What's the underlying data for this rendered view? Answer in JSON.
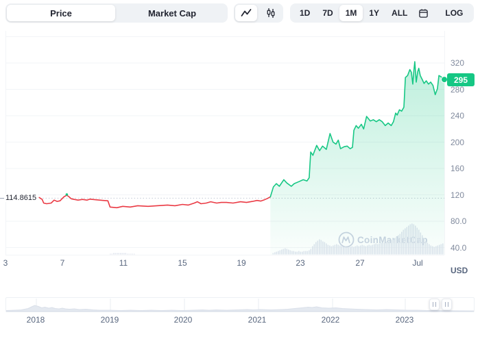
{
  "toolbar": {
    "view_tabs": [
      {
        "id": "price",
        "label": "Price",
        "selected": true
      },
      {
        "id": "market-cap",
        "label": "Market Cap",
        "selected": false
      }
    ],
    "chart_types": [
      {
        "icon": "line-chart-icon",
        "selected": true
      },
      {
        "icon": "candlestick-icon",
        "selected": false
      }
    ],
    "ranges": [
      {
        "label": "1D",
        "selected": false
      },
      {
        "label": "7D",
        "selected": false
      },
      {
        "label": "1M",
        "selected": true
      },
      {
        "label": "1Y",
        "selected": false
      },
      {
        "label": "ALL",
        "selected": false
      }
    ],
    "calendar_icon": "calendar-icon",
    "log_label": "LOG",
    "download_icon": "download-icon"
  },
  "chart": {
    "unit": "USD",
    "current_price": "295",
    "reference_price": "114.8615",
    "watermark": "CoinMarketCap",
    "y_ticks": [
      {
        "label": "320",
        "price": 320
      },
      {
        "label": "280",
        "price": 280
      },
      {
        "label": "240",
        "price": 240
      },
      {
        "label": "200",
        "price": 200
      },
      {
        "label": "160",
        "price": 160
      },
      {
        "label": "120",
        "price": 120
      },
      {
        "label": "80.0",
        "price": 80
      },
      {
        "label": "40.0",
        "price": 40
      }
    ],
    "x_ticks": [
      {
        "label": "3"
      },
      {
        "label": "7"
      },
      {
        "label": "11"
      },
      {
        "label": "15"
      },
      {
        "label": "19"
      },
      {
        "label": "23"
      },
      {
        "label": "27"
      },
      {
        "label": "Jul"
      }
    ]
  },
  "minimap": {
    "years": [
      "2018",
      "2019",
      "2020",
      "2021",
      "2022",
      "2023"
    ]
  },
  "colors": {
    "up": "#16c784",
    "down": "#ea3943",
    "toolbar_bg": "#eff2f5",
    "tick": "#808a9d",
    "axis": "#58667e",
    "volume": "#dfe4ee",
    "watermark": "#ccd3e2",
    "grid": "#f2f4f7",
    "ref_line": "#c1c8d4",
    "minimap_fill": "#e4e9f0",
    "minimap_stroke": "#d9dfe9"
  },
  "chart_data": {
    "type": "line",
    "title": "Price chart, 1M view, June 3 - early July",
    "unit": "USD",
    "x_axis": "day of month (June, ending at Jul)",
    "x_tick_values": [
      3,
      7,
      11,
      15,
      19,
      23,
      27,
      31
    ],
    "y_tick_values": [
      40,
      80,
      120,
      160,
      200,
      240,
      280,
      320
    ],
    "ylim": [
      20,
      360
    ],
    "grid": true,
    "reference_price": 114.8615,
    "current_price": 295,
    "series": [
      {
        "name": "price-down-segment",
        "color": "#ea3943",
        "points": [
          [
            5.4,
            116
          ],
          [
            5.6,
            113
          ],
          [
            5.7,
            107.5
          ],
          [
            5.9,
            106.5
          ],
          [
            6.2,
            107.5
          ],
          [
            6.4,
            112
          ],
          [
            6.6,
            110
          ],
          [
            6.8,
            111
          ],
          [
            7.05,
            117
          ],
          [
            7.25,
            119.5
          ],
          [
            7.4,
            117
          ],
          [
            7.55,
            114
          ],
          [
            7.75,
            113
          ],
          [
            8.0,
            112
          ],
          [
            8.3,
            113
          ],
          [
            8.6,
            112
          ],
          [
            8.8,
            113.5
          ],
          [
            9.2,
            112.5
          ],
          [
            9.7,
            111.5
          ],
          [
            10.0,
            111
          ],
          [
            10.15,
            101.5
          ],
          [
            10.6,
            100.5
          ],
          [
            11.0,
            102.5
          ],
          [
            11.5,
            101.5
          ],
          [
            12.0,
            103.5
          ],
          [
            12.7,
            102.5
          ],
          [
            13.3,
            103.5
          ],
          [
            14.0,
            104.5
          ],
          [
            14.5,
            103.5
          ],
          [
            15.0,
            105.5
          ],
          [
            15.4,
            104.5
          ],
          [
            15.8,
            107.5
          ],
          [
            16.0,
            109.5
          ],
          [
            16.25,
            106.5
          ],
          [
            16.6,
            107.5
          ],
          [
            16.9,
            109.5
          ],
          [
            17.3,
            107.5
          ],
          [
            17.6,
            108.5
          ],
          [
            17.95,
            108.5
          ],
          [
            18.4,
            107.5
          ],
          [
            18.9,
            109.5
          ],
          [
            19.3,
            108.5
          ],
          [
            19.7,
            110
          ],
          [
            20.0,
            111.5
          ],
          [
            20.25,
            110.5
          ],
          [
            20.5,
            112.5
          ],
          [
            20.7,
            114.5
          ],
          [
            20.9,
            117
          ]
        ]
      },
      {
        "name": "price-up-segment",
        "color": "#16c784",
        "points": [
          [
            20.9,
            117
          ],
          [
            21.1,
            132
          ],
          [
            21.3,
            137
          ],
          [
            21.5,
            133
          ],
          [
            21.8,
            143
          ],
          [
            22.0,
            138
          ],
          [
            22.3,
            133
          ],
          [
            22.5,
            137
          ],
          [
            22.8,
            140
          ],
          [
            23.1,
            143
          ],
          [
            23.35,
            141
          ],
          [
            23.5,
            146
          ],
          [
            23.6,
            185
          ],
          [
            23.75,
            180
          ],
          [
            24.0,
            195
          ],
          [
            24.2,
            187
          ],
          [
            24.4,
            194
          ],
          [
            24.65,
            189
          ],
          [
            24.9,
            213
          ],
          [
            25.1,
            200
          ],
          [
            25.3,
            197
          ],
          [
            25.45,
            203
          ],
          [
            25.6,
            190
          ],
          [
            25.85,
            193
          ],
          [
            26.05,
            194
          ],
          [
            26.25,
            190
          ],
          [
            26.4,
            192
          ],
          [
            26.5,
            218
          ],
          [
            26.65,
            225
          ],
          [
            26.8,
            221
          ],
          [
            27.0,
            227
          ],
          [
            27.15,
            220
          ],
          [
            27.35,
            239
          ],
          [
            27.6,
            232
          ],
          [
            27.8,
            234
          ],
          [
            28.0,
            231
          ],
          [
            28.2,
            234
          ],
          [
            28.4,
            231
          ],
          [
            28.6,
            225
          ],
          [
            28.8,
            229
          ],
          [
            29.0,
            225
          ],
          [
            29.15,
            231
          ],
          [
            29.3,
            244
          ],
          [
            29.4,
            241
          ],
          [
            29.55,
            249
          ],
          [
            29.7,
            247
          ],
          [
            29.85,
            253
          ],
          [
            29.95,
            298
          ],
          [
            30.1,
            301
          ],
          [
            30.25,
            310
          ],
          [
            30.35,
            306
          ],
          [
            30.45,
            288
          ],
          [
            30.52,
            309
          ],
          [
            30.58,
            322
          ],
          [
            30.68,
            291
          ],
          [
            30.78,
            307
          ],
          [
            30.85,
            312
          ],
          [
            30.95,
            301
          ],
          [
            31.1,
            294
          ],
          [
            31.2,
            289
          ],
          [
            31.35,
            293
          ],
          [
            31.5,
            288
          ],
          [
            31.65,
            291
          ],
          [
            31.8,
            286
          ],
          [
            31.95,
            272
          ],
          [
            32.1,
            281
          ],
          [
            32.2,
            301
          ],
          [
            32.35,
            299
          ],
          [
            32.5,
            296
          ],
          [
            32.6,
            295
          ]
        ]
      }
    ],
    "event_marker": {
      "day": 7.25,
      "price": 119.5
    },
    "volume_runs": [
      [
        40,
        0
      ],
      [
        2,
        1
      ],
      [
        8,
        2
      ],
      [
        5,
        1
      ],
      [
        80,
        0
      ],
      [
        1,
        2
      ],
      [
        1,
        3
      ],
      [
        1,
        4
      ],
      [
        1,
        5
      ],
      [
        1,
        6
      ],
      [
        1,
        7
      ],
      [
        1,
        8
      ],
      [
        1,
        9
      ],
      [
        1,
        8
      ],
      [
        1,
        7
      ],
      [
        1,
        6
      ],
      [
        2,
        5
      ],
      [
        2,
        4
      ],
      [
        1,
        5
      ],
      [
        2,
        4
      ],
      [
        1,
        5
      ],
      [
        2,
        5
      ],
      [
        1,
        6
      ],
      [
        1,
        8
      ],
      [
        1,
        12
      ],
      [
        1,
        15
      ],
      [
        1,
        18
      ],
      [
        1,
        20
      ],
      [
        1,
        22
      ],
      [
        1,
        21
      ],
      [
        1,
        19
      ],
      [
        1,
        18
      ],
      [
        1,
        16
      ],
      [
        1,
        14
      ],
      [
        1,
        13
      ],
      [
        1,
        12
      ],
      [
        1,
        13
      ],
      [
        1,
        14
      ],
      [
        1,
        15
      ],
      [
        1,
        14
      ],
      [
        1,
        13
      ],
      [
        1,
        12
      ],
      [
        1,
        11
      ],
      [
        1,
        12
      ],
      [
        1,
        11
      ],
      [
        1,
        10
      ],
      [
        1,
        11
      ],
      [
        1,
        12
      ],
      [
        1,
        11
      ],
      [
        1,
        12
      ],
      [
        1,
        13
      ],
      [
        1,
        12
      ],
      [
        1,
        13
      ],
      [
        1,
        14
      ],
      [
        1,
        13
      ],
      [
        1,
        12
      ],
      [
        1,
        13
      ],
      [
        1,
        14
      ],
      [
        1,
        13
      ],
      [
        1,
        14
      ],
      [
        1,
        15
      ],
      [
        1,
        16
      ],
      [
        1,
        15
      ],
      [
        1,
        16
      ],
      [
        1,
        17
      ],
      [
        1,
        18
      ],
      [
        1,
        17
      ],
      [
        1,
        18
      ],
      [
        1,
        19
      ],
      [
        1,
        20
      ],
      [
        1,
        21
      ],
      [
        1,
        22
      ],
      [
        1,
        24
      ],
      [
        1,
        26
      ],
      [
        1,
        28
      ],
      [
        1,
        30
      ],
      [
        1,
        33
      ],
      [
        1,
        36
      ],
      [
        1,
        38
      ],
      [
        1,
        40
      ],
      [
        1,
        42
      ],
      [
        1,
        44
      ],
      [
        1,
        45
      ],
      [
        1,
        44
      ],
      [
        1,
        42
      ],
      [
        1,
        39
      ],
      [
        1,
        36
      ],
      [
        1,
        32
      ],
      [
        1,
        28
      ],
      [
        1,
        24
      ],
      [
        1,
        20
      ],
      [
        1,
        17
      ],
      [
        1,
        15
      ],
      [
        1,
        13
      ],
      [
        1,
        12
      ],
      [
        1,
        11
      ],
      [
        1,
        12
      ],
      [
        1,
        13
      ],
      [
        1,
        14
      ],
      [
        1,
        15
      ],
      [
        1,
        16
      ]
    ],
    "minimap_profile": [
      [
        0,
        1
      ],
      [
        0.018,
        1.5
      ],
      [
        0.032,
        2
      ],
      [
        0.047,
        4
      ],
      [
        0.056,
        7
      ],
      [
        0.061,
        8.5
      ],
      [
        0.069,
        7
      ],
      [
        0.076,
        5
      ],
      [
        0.083,
        6
      ],
      [
        0.091,
        4.5
      ],
      [
        0.098,
        5.5
      ],
      [
        0.105,
        4
      ],
      [
        0.113,
        3.5
      ],
      [
        0.12,
        4.5
      ],
      [
        0.127,
        3.5
      ],
      [
        0.135,
        3
      ],
      [
        0.146,
        3.5
      ],
      [
        0.156,
        2.5
      ],
      [
        0.171,
        3
      ],
      [
        0.186,
        2
      ],
      [
        0.2,
        1.5
      ],
      [
        0.222,
        1.5
      ],
      [
        0.244,
        1
      ],
      [
        0.266,
        1.5
      ],
      [
        0.288,
        1
      ],
      [
        0.31,
        1.5
      ],
      [
        0.332,
        1
      ],
      [
        0.354,
        1.5
      ],
      [
        0.376,
        1
      ],
      [
        0.398,
        1.5
      ],
      [
        0.42,
        2
      ],
      [
        0.434,
        1.5
      ],
      [
        0.449,
        2
      ],
      [
        0.471,
        1.5
      ],
      [
        0.493,
        2
      ],
      [
        0.515,
        2.5
      ],
      [
        0.529,
        2
      ],
      [
        0.544,
        2.5
      ],
      [
        0.566,
        2
      ],
      [
        0.588,
        2.5
      ],
      [
        0.602,
        3
      ],
      [
        0.617,
        4
      ],
      [
        0.632,
        5
      ],
      [
        0.646,
        6
      ],
      [
        0.654,
        5.5
      ],
      [
        0.664,
        6.5
      ],
      [
        0.675,
        5
      ],
      [
        0.69,
        4.5
      ],
      [
        0.705,
        5
      ],
      [
        0.719,
        4
      ],
      [
        0.734,
        3.5
      ],
      [
        0.749,
        3
      ],
      [
        0.77,
        2.5
      ],
      [
        0.792,
        2
      ],
      [
        0.814,
        2.5
      ],
      [
        0.836,
        2
      ],
      [
        0.858,
        1.5
      ],
      [
        0.88,
        1.5
      ],
      [
        0.902,
        1
      ],
      [
        0.924,
        1
      ],
      [
        0.946,
        0.8
      ],
      [
        0.968,
        0.6
      ],
      [
        1,
        0.5
      ]
    ]
  }
}
